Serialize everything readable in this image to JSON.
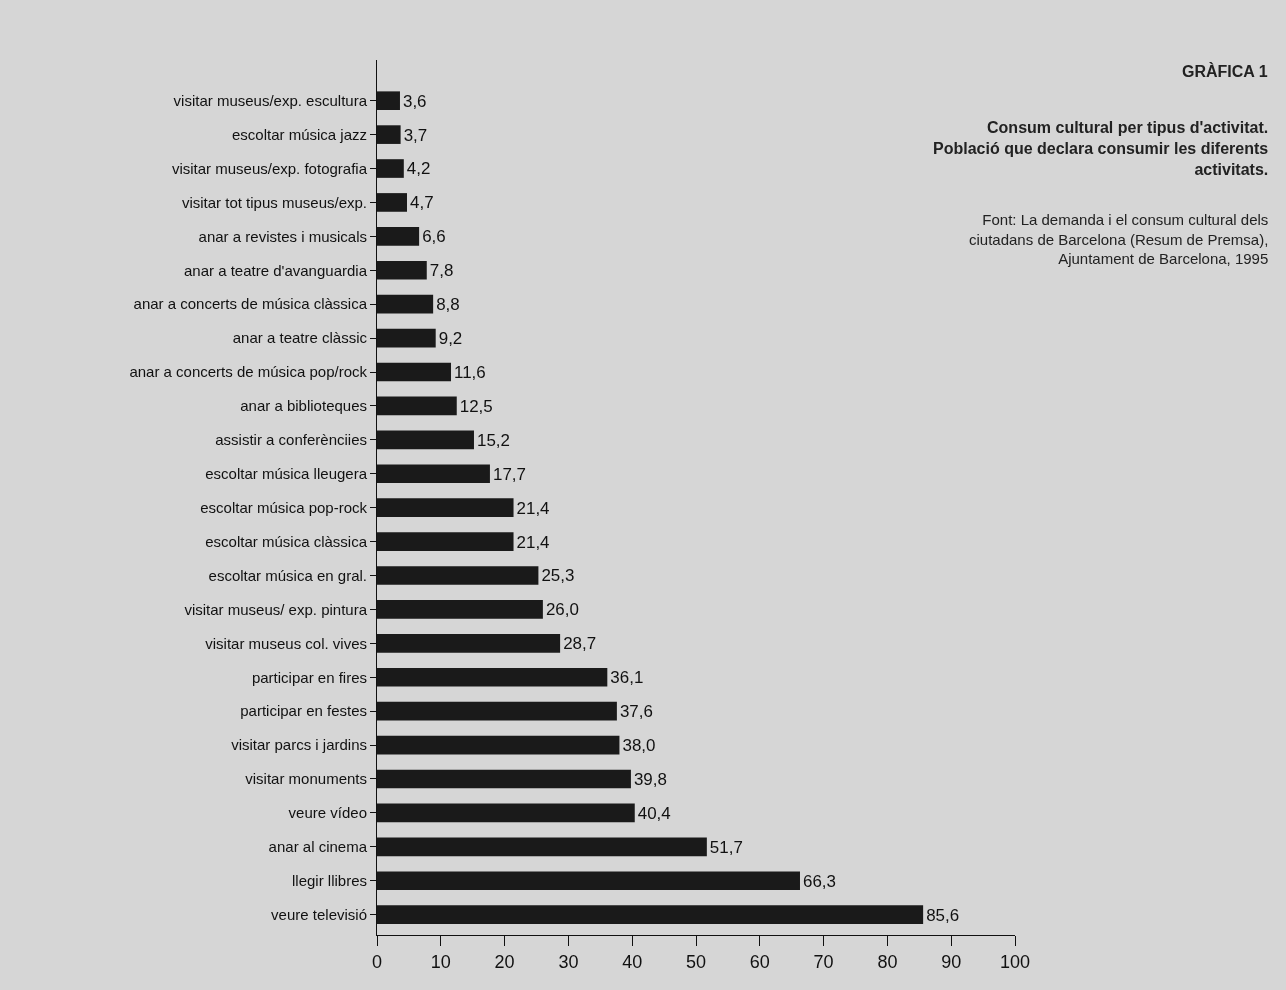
{
  "chart_data": {
    "type": "bar",
    "orientation": "horizontal",
    "title": "GRÀFICA 1",
    "subtitle": "Consum cultural per tipus d'activitat.\nPoblació que declara consumir les diferents\nactivitats.",
    "annotations": [
      "Font: La demanda i el consum cultural dels\nciutadans de Barcelona (Resum de Premsa),\nAjuntament de Barcelona, 1995"
    ],
    "categories": [
      "visitar museus/exp. escultura",
      "escoltar música jazz",
      "visitar museus/exp. fotografia",
      "visitar tot tipus museus/exp.",
      "anar a revistes i musicals",
      "anar a teatre d'avanguardia",
      "anar a concerts de música clàssica",
      "anar a teatre clàssic",
      "anar a concerts de música pop/rock",
      "anar a biblioteques",
      "assistir a conferènciies",
      "escoltar música lleugera",
      "escoltar música pop-rock",
      "escoltar música clàssica",
      "escoltar música en gral.",
      "visitar museus/ exp. pintura",
      "visitar museus col. vives",
      "participar en fires",
      "participar en festes",
      "visitar parcs i jardins",
      "visitar monuments",
      "veure vídeo",
      "anar al cinema",
      "llegir llibres",
      "veure televisió"
    ],
    "values": [
      3.6,
      3.7,
      4.2,
      4.7,
      6.6,
      7.8,
      8.8,
      9.2,
      11.6,
      12.5,
      15.2,
      17.7,
      21.4,
      21.4,
      25.3,
      26.0,
      28.7,
      36.1,
      37.6,
      38.0,
      39.8,
      40.4,
      51.7,
      66.3,
      85.6
    ],
    "value_labels": [
      "3,6",
      "3,7",
      "4,2",
      "4,7",
      "6,6",
      "7,8",
      "8,8",
      "9,2",
      "11,6",
      "12,5",
      "15,2",
      "17,7",
      "21,4",
      "21,4",
      "25,3",
      "26,0",
      "28,7",
      "36,1",
      "37,6",
      "38,0",
      "39,8",
      "40,4",
      "51,7",
      "66,3",
      "85,6"
    ],
    "color": "#1a1a1a",
    "xlim": [
      0,
      100
    ],
    "xticks": [
      0,
      10,
      20,
      30,
      40,
      50,
      60,
      70,
      80,
      90,
      100
    ],
    "grid": false,
    "legend": false
  }
}
